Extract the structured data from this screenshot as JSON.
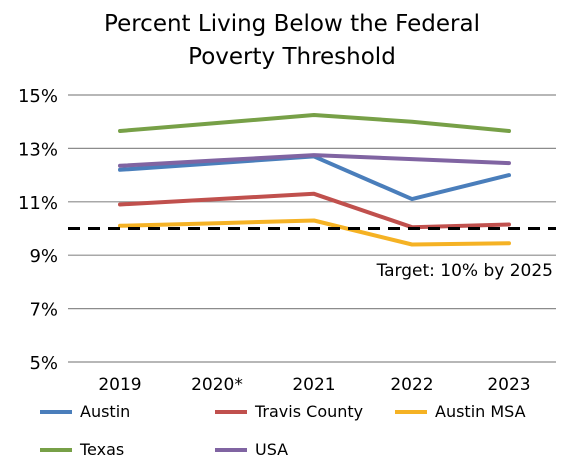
{
  "chart_data": {
    "type": "line",
    "title_line1": "Percent Living Below the Federal",
    "title_line2": "Poverty Threshold",
    "categories": [
      "2019",
      "2020*",
      "2021",
      "2022",
      "2023"
    ],
    "ylim": [
      5,
      15
    ],
    "yticks": [
      5,
      7,
      9,
      11,
      13,
      15
    ],
    "ytick_labels": [
      "5%",
      "7%",
      "9%",
      "11%",
      "13%",
      "15%"
    ],
    "grid": true,
    "series": [
      {
        "name": "Austin",
        "color": "#4a7ebb",
        "values": [
          12.2,
          12.45,
          12.7,
          11.1,
          12.0
        ]
      },
      {
        "name": "Travis County",
        "color": "#c0504d",
        "values": [
          10.9,
          11.1,
          11.3,
          10.05,
          10.15
        ]
      },
      {
        "name": "Austin MSA",
        "color": "#f5b224",
        "values": [
          10.1,
          10.2,
          10.3,
          9.4,
          9.45
        ]
      },
      {
        "name": "Texas",
        "color": "#77a047",
        "values": [
          13.65,
          13.95,
          14.25,
          14.0,
          13.65
        ]
      },
      {
        "name": "USA",
        "color": "#8064a2",
        "values": [
          12.35,
          12.55,
          12.75,
          12.6,
          12.45
        ]
      }
    ],
    "target": {
      "value": 10,
      "label": "Target: 10% by 2025"
    },
    "legend_position": "bottom"
  }
}
